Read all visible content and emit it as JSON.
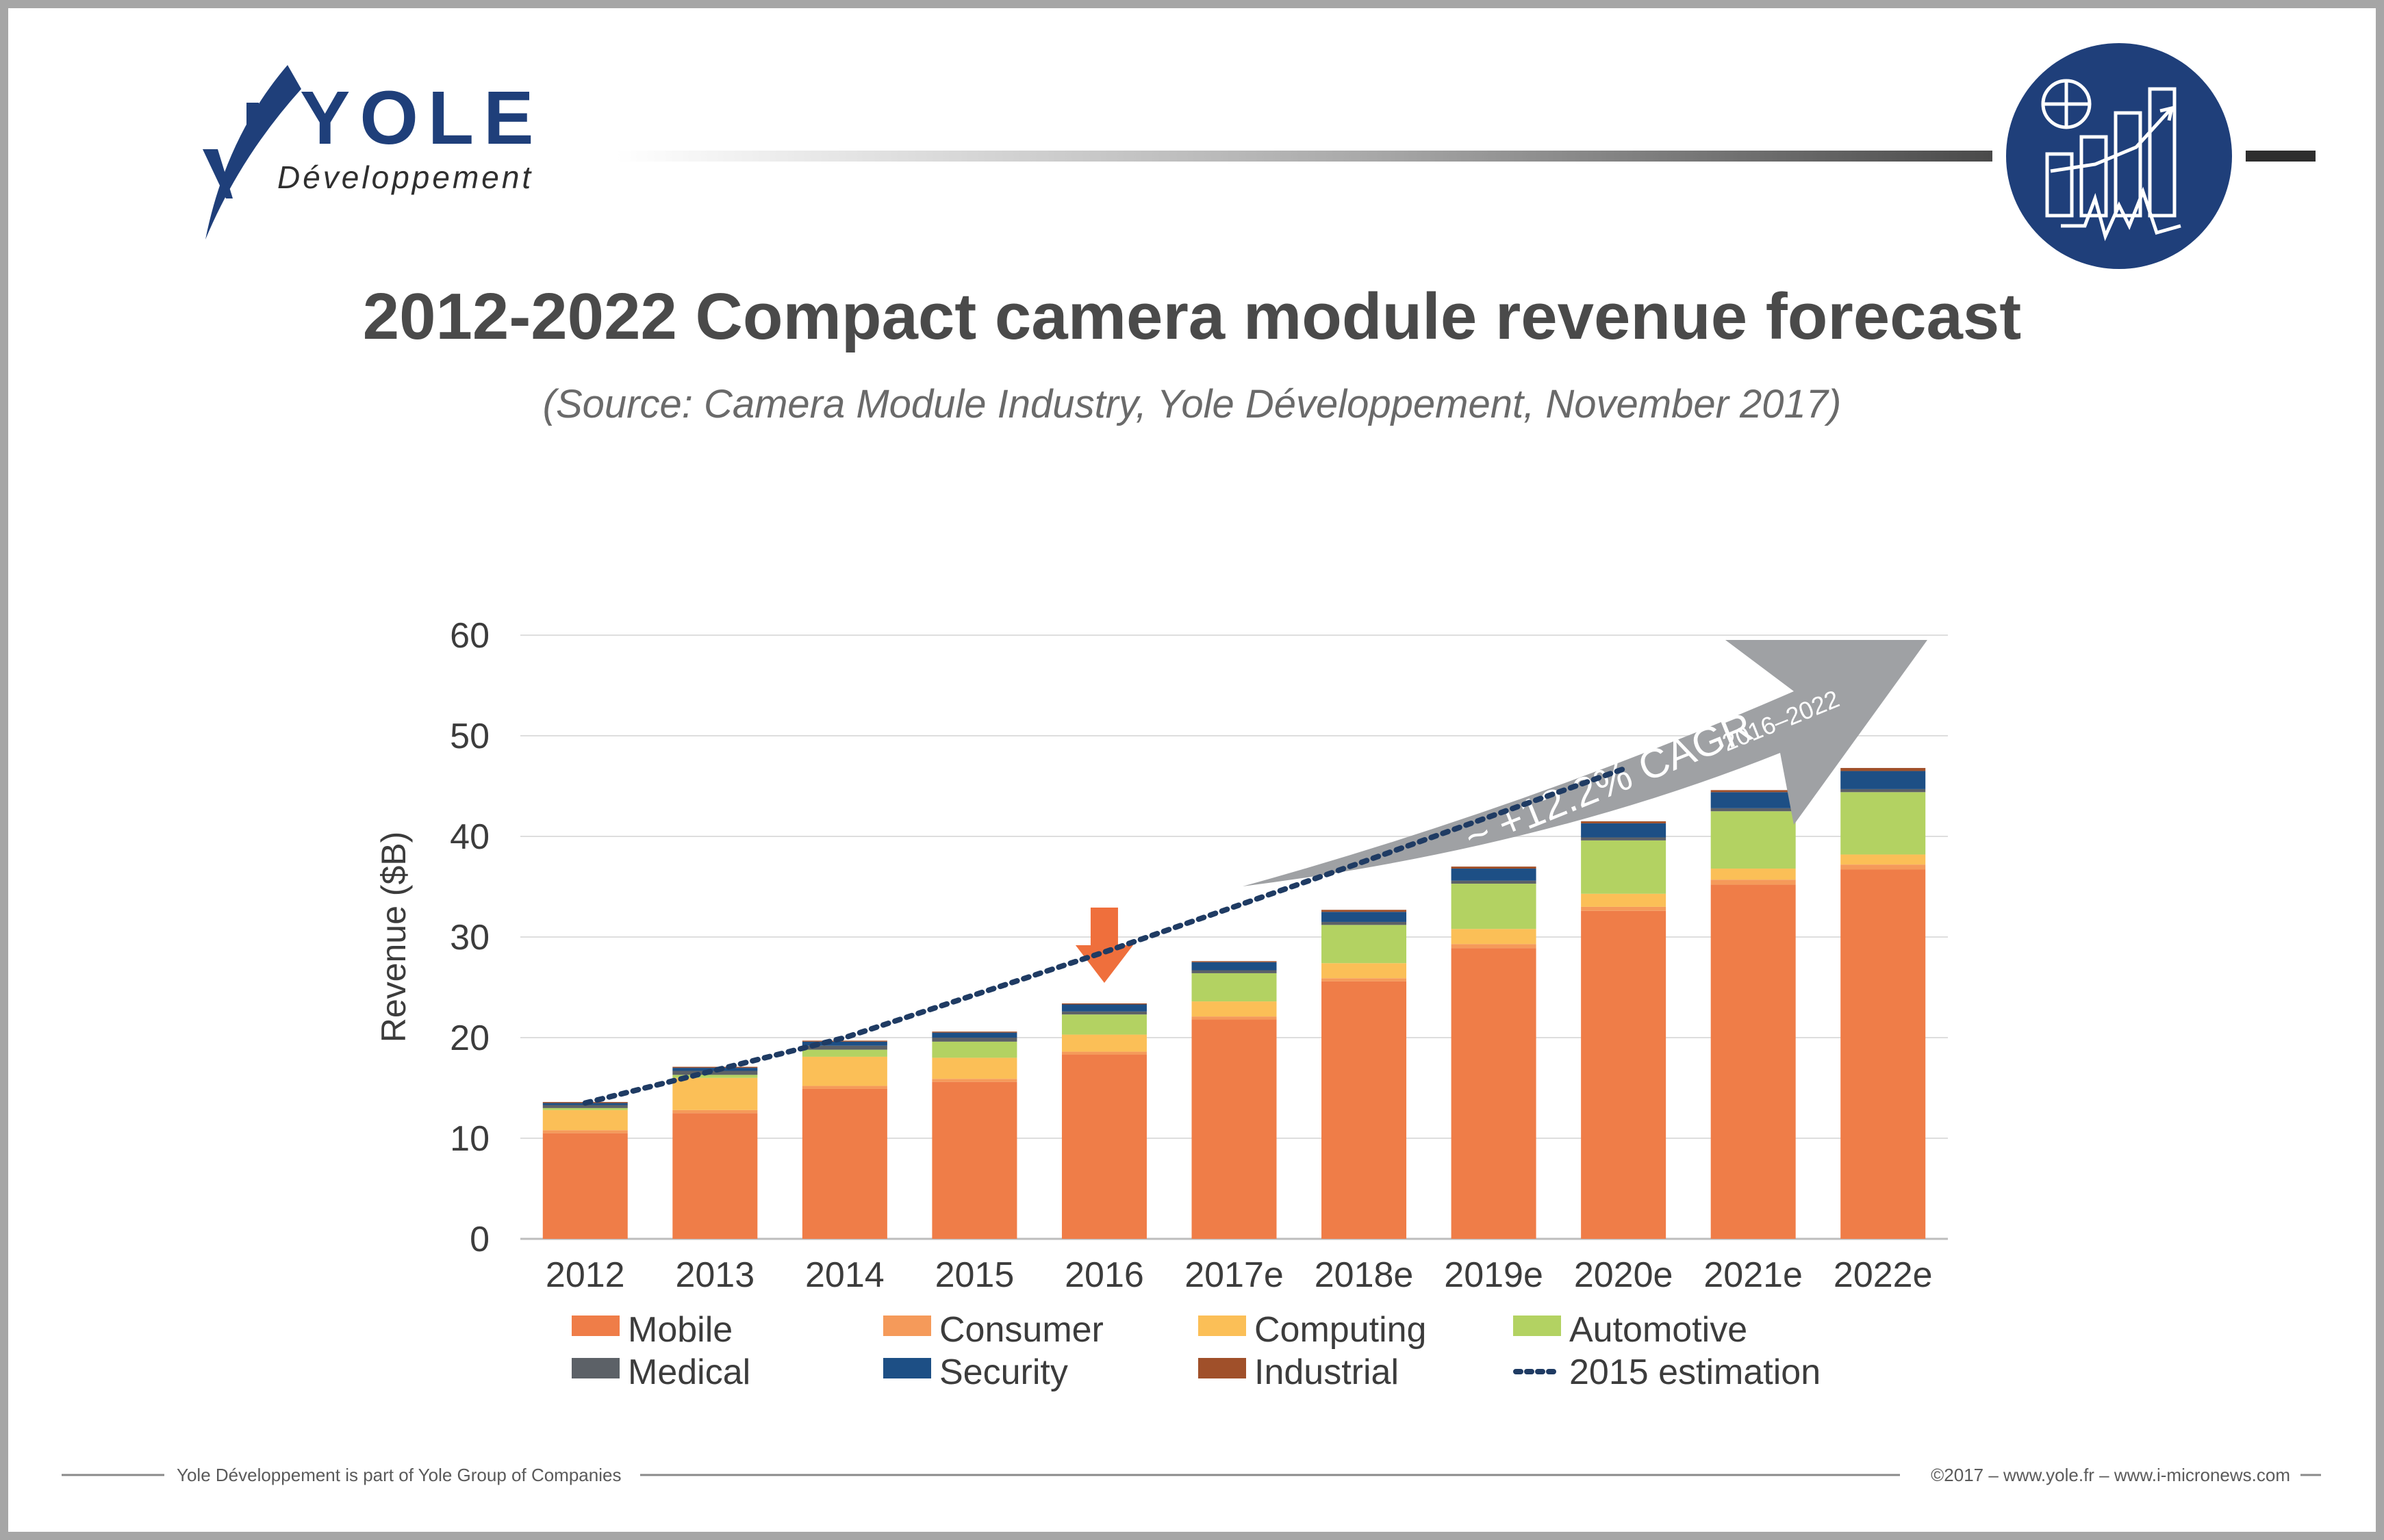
{
  "brand": {
    "name": "YOLE",
    "tagline": "Développement",
    "navy": "#1f3f7a",
    "icon": "analytics-chart-icon"
  },
  "header": {
    "title": "2012-2022 Compact camera module revenue forecast",
    "subtitle": "(Source: Camera Module Industry, Yole Développement, November 2017)"
  },
  "footer": {
    "left": "Yole Développement is part of Yole Group of Companies",
    "right": "©2017 – www.yole.fr – www.i-micronews.com"
  },
  "chart_data": {
    "type": "bar",
    "stacked": true,
    "title": "2012-2022 Compact camera module revenue forecast",
    "subtitle": "(Source: Camera Module Industry, Yole Développement, November 2017)",
    "xlabel": "",
    "ylabel": "Revenue ($B)",
    "ylim": [
      0,
      60
    ],
    "yticks": [
      "0",
      "10",
      "20",
      "30",
      "40",
      "50",
      "60"
    ],
    "grid": true,
    "legend_position": "bottom",
    "categories": [
      "2012",
      "2013",
      "2014",
      "2015",
      "2016",
      "2017e",
      "2018e",
      "2019e",
      "2020e",
      "2021e",
      "2022e"
    ],
    "series": [
      {
        "name": "Mobile",
        "color": "#ef7d48",
        "values": [
          10.5,
          12.5,
          14.9,
          15.6,
          18.3,
          21.8,
          25.6,
          28.9,
          32.6,
          35.2,
          36.7
        ]
      },
      {
        "name": "Consumer",
        "color": "#f59a5a",
        "values": [
          0.3,
          0.3,
          0.3,
          0.3,
          0.3,
          0.3,
          0.3,
          0.4,
          0.4,
          0.5,
          0.5
        ]
      },
      {
        "name": "Computing",
        "color": "#fbbf57",
        "values": [
          2.0,
          3.2,
          2.9,
          2.1,
          1.7,
          1.5,
          1.5,
          1.5,
          1.3,
          1.1,
          1.0
        ]
      },
      {
        "name": "Automotive",
        "color": "#b3d262",
        "values": [
          0.2,
          0.3,
          0.7,
          1.6,
          2.0,
          2.8,
          3.8,
          4.5,
          5.3,
          5.7,
          6.2
        ]
      },
      {
        "name": "Medical",
        "color": "#5c6167",
        "values": [
          0.3,
          0.4,
          0.4,
          0.4,
          0.3,
          0.3,
          0.3,
          0.3,
          0.3,
          0.3,
          0.3
        ]
      },
      {
        "name": "Security",
        "color": "#1d4f85",
        "values": [
          0.2,
          0.3,
          0.4,
          0.5,
          0.7,
          0.8,
          1.0,
          1.2,
          1.4,
          1.6,
          1.8
        ]
      },
      {
        "name": "Industrial",
        "color": "#a0502a",
        "values": [
          0.1,
          0.1,
          0.1,
          0.1,
          0.1,
          0.1,
          0.2,
          0.2,
          0.2,
          0.2,
          0.3
        ]
      }
    ],
    "estimation_line": {
      "name": "2015 estimation",
      "color": "#1f3b63",
      "x": [
        "2012",
        "2014",
        "2016",
        "2018e",
        "2020e"
      ],
      "y": [
        13.5,
        20.0,
        28.5,
        37.5,
        46.7
      ]
    },
    "annotations": {
      "cagr_text": "~ +12.2% CAGR",
      "cagr_period": "2016–2022",
      "highlight_category": "2016"
    }
  }
}
